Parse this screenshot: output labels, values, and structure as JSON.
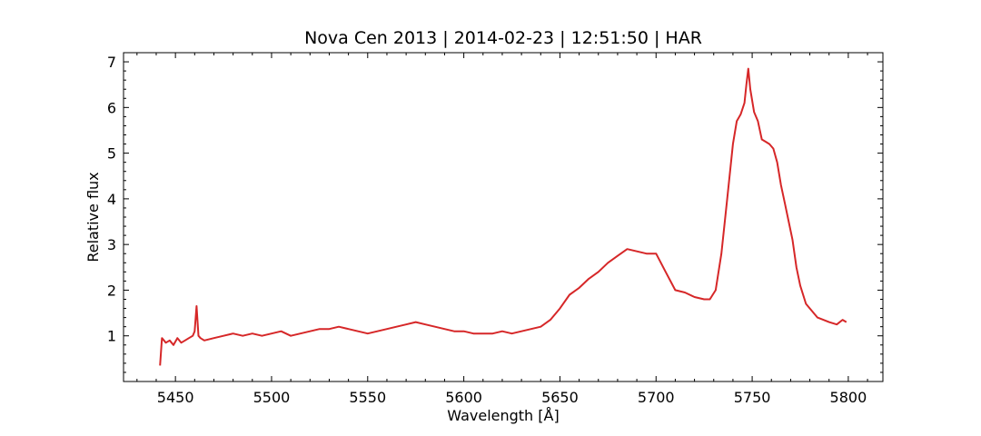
{
  "chart_data": {
    "type": "line",
    "title": "Nova Cen 2013 | 2014-02-23 | 12:51:50 | HAR",
    "xlabel": "Wavelength [Å]",
    "ylabel": "Relative flux",
    "xlim": [
      5423,
      5818
    ],
    "ylim": [
      0,
      7.2
    ],
    "xticks": [
      5450,
      5500,
      5550,
      5600,
      5650,
      5700,
      5750,
      5800
    ],
    "yticks": [
      1,
      2,
      3,
      4,
      5,
      6,
      7
    ],
    "grid": false,
    "series": [
      {
        "color": "#d62728",
        "x": [
          5442,
          5443,
          5445,
          5447,
          5449,
          5451,
          5453,
          5455,
          5457,
          5459,
          5460,
          5461,
          5462,
          5463,
          5465,
          5470,
          5475,
          5480,
          5485,
          5490,
          5495,
          5500,
          5505,
          5510,
          5515,
          5520,
          5525,
          5530,
          5535,
          5540,
          5545,
          5550,
          5555,
          5560,
          5565,
          5570,
          5575,
          5580,
          5585,
          5590,
          5595,
          5600,
          5605,
          5610,
          5615,
          5620,
          5625,
          5630,
          5635,
          5640,
          5645,
          5650,
          5655,
          5660,
          5665,
          5670,
          5675,
          5680,
          5685,
          5690,
          5695,
          5700,
          5705,
          5710,
          5715,
          5720,
          5725,
          5728,
          5731,
          5734,
          5737,
          5740,
          5742,
          5744,
          5746,
          5747,
          5748,
          5749,
          5751,
          5753,
          5755,
          5757,
          5759,
          5761,
          5763,
          5765,
          5767,
          5769,
          5771,
          5773,
          5775,
          5778,
          5781,
          5784,
          5787,
          5790,
          5794,
          5797,
          5799
        ],
        "y": [
          0.35,
          0.95,
          0.85,
          0.9,
          0.8,
          0.95,
          0.85,
          0.9,
          0.95,
          1.0,
          1.1,
          1.65,
          1.0,
          0.95,
          0.9,
          0.95,
          1.0,
          1.05,
          1.0,
          1.05,
          1.0,
          1.05,
          1.1,
          1.0,
          1.05,
          1.1,
          1.15,
          1.15,
          1.2,
          1.15,
          1.1,
          1.05,
          1.1,
          1.15,
          1.2,
          1.25,
          1.3,
          1.25,
          1.2,
          1.15,
          1.1,
          1.1,
          1.05,
          1.05,
          1.05,
          1.1,
          1.05,
          1.1,
          1.15,
          1.2,
          1.35,
          1.6,
          1.9,
          2.05,
          2.25,
          2.4,
          2.6,
          2.75,
          2.9,
          2.85,
          2.8,
          2.8,
          2.4,
          2.0,
          1.95,
          1.85,
          1.8,
          1.8,
          2.0,
          2.8,
          4.0,
          5.2,
          5.7,
          5.85,
          6.1,
          6.5,
          6.85,
          6.4,
          5.9,
          5.7,
          5.3,
          5.25,
          5.2,
          5.1,
          4.8,
          4.3,
          3.9,
          3.5,
          3.1,
          2.5,
          2.1,
          1.7,
          1.55,
          1.4,
          1.35,
          1.3,
          1.25,
          1.35,
          1.3
        ]
      }
    ]
  }
}
